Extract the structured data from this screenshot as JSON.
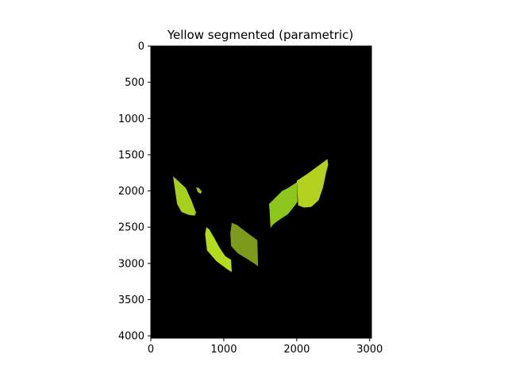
{
  "chart_data": {
    "type": "image",
    "title": "Yellow segmented (parametric)",
    "xlabel": "",
    "ylabel": "",
    "xlim": [
      0,
      3024
    ],
    "ylim": [
      4032,
      0
    ],
    "x_ticks": [
      0,
      1000,
      2000,
      3000
    ],
    "y_ticks": [
      0,
      500,
      1000,
      1500,
      2000,
      2500,
      3000,
      3500,
      4000
    ],
    "background_color": "#000000",
    "grid": false,
    "regions": [
      {
        "name": "leaf-left-upper",
        "color": "#a7cf1e",
        "points": [
          [
            305,
            1800
          ],
          [
            330,
            1820
          ],
          [
            480,
            1960
          ],
          [
            560,
            2140
          ],
          [
            620,
            2300
          ],
          [
            600,
            2340
          ],
          [
            520,
            2330
          ],
          [
            420,
            2290
          ],
          [
            360,
            2180
          ]
        ]
      },
      {
        "name": "leaf-left-upper-fragment",
        "color": "#9cc21b",
        "points": [
          [
            620,
            1950
          ],
          [
            660,
            1960
          ],
          [
            700,
            2010
          ],
          [
            680,
            2040
          ],
          [
            640,
            2010
          ]
        ]
      },
      {
        "name": "leaf-lower-left",
        "color": "#b5db1e",
        "points": [
          [
            760,
            2500
          ],
          [
            800,
            2530
          ],
          [
            870,
            2650
          ],
          [
            940,
            2780
          ],
          [
            1020,
            2900
          ],
          [
            1100,
            2950
          ],
          [
            1110,
            3120
          ],
          [
            1060,
            3090
          ],
          [
            900,
            2970
          ],
          [
            770,
            2820
          ],
          [
            745,
            2600
          ]
        ]
      },
      {
        "name": "leaf-lower-middle",
        "color": "#7d9a1a",
        "points": [
          [
            1110,
            2440
          ],
          [
            1180,
            2470
          ],
          [
            1300,
            2560
          ],
          [
            1460,
            2680
          ],
          [
            1470,
            3040
          ],
          [
            1430,
            3010
          ],
          [
            1320,
            2940
          ],
          [
            1190,
            2860
          ],
          [
            1100,
            2760
          ],
          [
            1090,
            2580
          ]
        ]
      },
      {
        "name": "leaf-right-small",
        "color": "#8dc71e",
        "points": [
          [
            1620,
            2180
          ],
          [
            1700,
            2100
          ],
          [
            1800,
            2000
          ],
          [
            1880,
            1960
          ],
          [
            2000,
            1880
          ],
          [
            2010,
            2150
          ],
          [
            1960,
            2220
          ],
          [
            1880,
            2320
          ],
          [
            1760,
            2400
          ],
          [
            1680,
            2460
          ],
          [
            1640,
            2510
          ],
          [
            1630,
            2300
          ]
        ]
      },
      {
        "name": "leaf-right-large",
        "color": "#b3d11e",
        "points": [
          [
            2000,
            1860
          ],
          [
            2150,
            1760
          ],
          [
            2300,
            1650
          ],
          [
            2420,
            1560
          ],
          [
            2430,
            1640
          ],
          [
            2400,
            1760
          ],
          [
            2360,
            1950
          ],
          [
            2300,
            2130
          ],
          [
            2200,
            2220
          ],
          [
            2100,
            2230
          ],
          [
            2020,
            2200
          ]
        ]
      }
    ]
  }
}
